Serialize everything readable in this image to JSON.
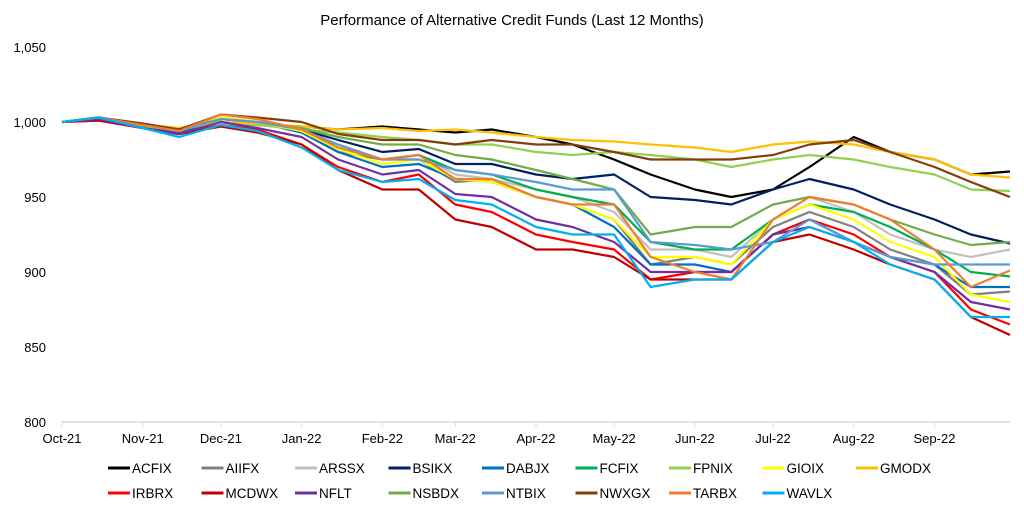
{
  "chart_data": {
    "type": "line",
    "title": "Performance of Alternative Credit Funds (Last 12 Months)",
    "xlabel": "",
    "ylabel": "",
    "ylim": [
      800,
      1050
    ],
    "yticks": [
      800,
      850,
      900,
      950,
      1000,
      1050
    ],
    "ytick_labels": [
      "800",
      "850",
      "900",
      "950",
      "1,000",
      "1,050"
    ],
    "xlim": [
      "2021-10-01",
      "2022-09-30"
    ],
    "xticks": [
      "2021-10-01",
      "2021-11-01",
      "2021-12-01",
      "2022-01-01",
      "2022-02-01",
      "2022-03-01",
      "2022-04-01",
      "2022-05-01",
      "2022-06-01",
      "2022-07-01",
      "2022-08-01",
      "2022-09-01"
    ],
    "xtick_labels": [
      "Oct-21",
      "Nov-21",
      "Dec-21",
      "Jan-22",
      "Feb-22",
      "Mar-22",
      "Apr-22",
      "May-22",
      "Jun-22",
      "Jul-22",
      "Aug-22",
      "Sep-22"
    ],
    "grid": false,
    "legend_position": "bottom",
    "x": [
      "2021-10-01",
      "2021-10-15",
      "2021-11-01",
      "2021-11-15",
      "2021-12-01",
      "2021-12-15",
      "2022-01-01",
      "2022-01-15",
      "2022-02-01",
      "2022-02-15",
      "2022-03-01",
      "2022-03-15",
      "2022-04-01",
      "2022-04-15",
      "2022-05-01",
      "2022-05-15",
      "2022-06-01",
      "2022-06-15",
      "2022-07-01",
      "2022-07-15",
      "2022-08-01",
      "2022-08-15",
      "2022-09-01",
      "2022-09-15",
      "2022-09-30"
    ],
    "series": [
      {
        "name": "ACFIX",
        "color": "#000000",
        "values": [
          1000,
          1003,
          998,
          995,
          1000,
          998,
          997,
          995,
          997,
          995,
          993,
          995,
          990,
          985,
          975,
          965,
          955,
          950,
          955,
          970,
          990,
          980,
          975,
          965,
          967
        ]
      },
      {
        "name": "AIIFX",
        "color": "#808080",
        "values": [
          1000,
          1002,
          997,
          993,
          1002,
          1000,
          993,
          980,
          975,
          975,
          960,
          962,
          950,
          945,
          935,
          905,
          910,
          905,
          930,
          940,
          930,
          915,
          905,
          885,
          887
        ]
      },
      {
        "name": "ARSSX",
        "color": "#c0c0c0",
        "values": [
          1000,
          1003,
          998,
          994,
          1003,
          1000,
          995,
          985,
          975,
          978,
          965,
          962,
          955,
          950,
          940,
          915,
          915,
          910,
          935,
          950,
          940,
          925,
          915,
          910,
          915
        ]
      },
      {
        "name": "BSIKX",
        "color": "#002060",
        "values": [
          1000,
          1003,
          998,
          995,
          1002,
          1000,
          995,
          988,
          980,
          982,
          972,
          972,
          965,
          962,
          965,
          950,
          948,
          945,
          955,
          962,
          955,
          945,
          935,
          925,
          919
        ]
      },
      {
        "name": "DABJX",
        "color": "#0070c0",
        "values": [
          1000,
          1002,
          997,
          993,
          1002,
          1000,
          993,
          980,
          970,
          972,
          962,
          960,
          950,
          945,
          930,
          905,
          905,
          900,
          925,
          935,
          920,
          910,
          905,
          890,
          890
        ]
      },
      {
        "name": "FCFIX",
        "color": "#00b050",
        "values": [
          1000,
          1003,
          998,
          994,
          1003,
          1000,
          995,
          983,
          975,
          978,
          968,
          965,
          955,
          950,
          945,
          920,
          915,
          915,
          935,
          945,
          940,
          930,
          915,
          900,
          897
        ]
      },
      {
        "name": "FPNIX",
        "color": "#92d050",
        "values": [
          1000,
          1002,
          997,
          995,
          1000,
          998,
          995,
          993,
          990,
          988,
          985,
          985,
          980,
          978,
          980,
          978,
          975,
          970,
          975,
          978,
          975,
          970,
          965,
          955,
          954
        ]
      },
      {
        "name": "GIOIX",
        "color": "#ffff00",
        "values": [
          1000,
          1003,
          998,
          994,
          1003,
          1000,
          994,
          982,
          972,
          975,
          962,
          960,
          950,
          945,
          935,
          910,
          910,
          905,
          935,
          945,
          935,
          920,
          910,
          885,
          880
        ]
      },
      {
        "name": "GMODX",
        "color": "#ffc000",
        "values": [
          1000,
          1002,
          998,
          996,
          1000,
          999,
          997,
          995,
          996,
          994,
          995,
          993,
          990,
          988,
          987,
          985,
          983,
          980,
          985,
          987,
          985,
          980,
          975,
          965,
          963
        ]
      },
      {
        "name": "IRBRX",
        "color": "#ff0000",
        "values": [
          1000,
          1001,
          996,
          992,
          998,
          995,
          985,
          970,
          960,
          965,
          945,
          940,
          925,
          920,
          915,
          895,
          900,
          900,
          925,
          935,
          925,
          910,
          900,
          875,
          865
        ]
      },
      {
        "name": "MCDWX",
        "color": "#c00000",
        "values": [
          1000,
          1001,
          996,
          992,
          997,
          993,
          985,
          968,
          955,
          955,
          935,
          930,
          915,
          915,
          910,
          895,
          895,
          895,
          920,
          925,
          915,
          905,
          895,
          870,
          858
        ]
      },
      {
        "name": "NFLT",
        "color": "#7030a0",
        "values": [
          1000,
          1002,
          996,
          992,
          1000,
          996,
          990,
          975,
          965,
          968,
          952,
          950,
          935,
          930,
          920,
          900,
          900,
          900,
          925,
          930,
          920,
          910,
          900,
          880,
          875
        ]
      },
      {
        "name": "NSBDX",
        "color": "#70ad47",
        "values": [
          1000,
          1003,
          998,
          995,
          1002,
          1000,
          996,
          990,
          985,
          985,
          978,
          975,
          968,
          962,
          955,
          925,
          930,
          930,
          945,
          950,
          945,
          935,
          925,
          918,
          920
        ]
      },
      {
        "name": "NTBIX",
        "color": "#5b9bd5",
        "values": [
          1000,
          1003,
          998,
          994,
          1002,
          1000,
          995,
          985,
          975,
          975,
          968,
          965,
          960,
          955,
          955,
          920,
          918,
          915,
          920,
          935,
          920,
          910,
          905,
          905,
          905
        ]
      },
      {
        "name": "NWXGX",
        "color": "#843c0c",
        "values": [
          1000,
          1003,
          999,
          995,
          1005,
          1003,
          1000,
          992,
          988,
          988,
          985,
          988,
          985,
          985,
          980,
          975,
          975,
          975,
          978,
          985,
          988,
          980,
          970,
          960,
          950
        ]
      },
      {
        "name": "TARBX",
        "color": "#ed7d31",
        "values": [
          1000,
          1003,
          998,
          994,
          1005,
          1002,
          995,
          983,
          975,
          978,
          962,
          962,
          950,
          945,
          945,
          910,
          900,
          895,
          935,
          950,
          945,
          935,
          915,
          890,
          901
        ]
      },
      {
        "name": "WAVLX",
        "color": "#00b0f0",
        "values": [
          1000,
          1003,
          996,
          990,
          998,
          994,
          983,
          968,
          960,
          962,
          948,
          945,
          930,
          925,
          925,
          890,
          895,
          895,
          920,
          930,
          920,
          905,
          895,
          870,
          870
        ]
      }
    ]
  }
}
